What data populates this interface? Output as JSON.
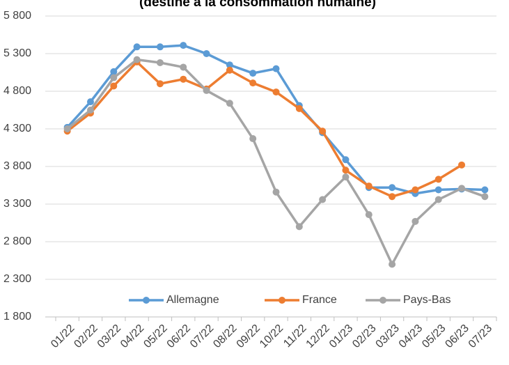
{
  "chart_data": {
    "type": "line",
    "title": "(destiné à la consommation humaine)",
    "categories": [
      "01/22",
      "02/22",
      "03/22",
      "04/22",
      "05/22",
      "06/22",
      "07/22",
      "08/22",
      "09/22",
      "10/22",
      "11/22",
      "12/22",
      "01/23",
      "02/23",
      "03/23",
      "04/23",
      "05/23",
      "06/23",
      "07/23"
    ],
    "series": [
      {
        "name": "Allemagne",
        "color": "#5b9bd5",
        "values": [
          4320,
          4660,
          5060,
          5390,
          5390,
          5410,
          5300,
          5150,
          5040,
          5100,
          4610,
          4250,
          3890,
          3520,
          3520,
          3440,
          3490,
          3500,
          3490
        ]
      },
      {
        "name": "France",
        "color": "#ed7d31",
        "values": [
          4270,
          4510,
          4870,
          5190,
          4900,
          4960,
          4830,
          5080,
          4910,
          4790,
          4570,
          4270,
          3750,
          3540,
          3400,
          3490,
          3630,
          3820,
          null
        ]
      },
      {
        "name": "Pays-Bas",
        "color": "#a5a5a5",
        "values": [
          4300,
          4550,
          4980,
          5220,
          5180,
          5120,
          4810,
          4640,
          4170,
          3460,
          3000,
          3360,
          3660,
          3160,
          2500,
          3070,
          3360,
          3510,
          3400
        ]
      }
    ],
    "ylim": [
      1800,
      5800
    ],
    "yticks": [
      {
        "value": 1800,
        "label": "1 800"
      },
      {
        "value": 2300,
        "label": "2 300"
      },
      {
        "value": 2800,
        "label": "2 800"
      },
      {
        "value": 3300,
        "label": "3 300"
      },
      {
        "value": 3800,
        "label": "3 800"
      },
      {
        "value": 4300,
        "label": "4 300"
      },
      {
        "value": 4800,
        "label": "4 800"
      },
      {
        "value": 5300,
        "label": "5 300"
      },
      {
        "value": 5800,
        "label": "5 800"
      }
    ],
    "grid": true,
    "legend": "bottom"
  }
}
